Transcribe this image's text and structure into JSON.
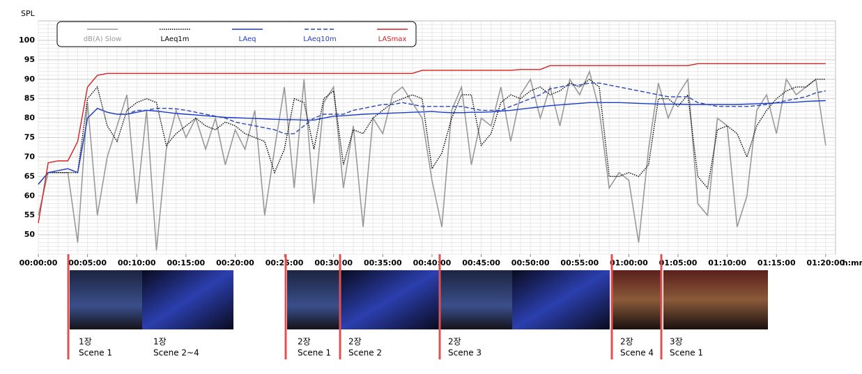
{
  "chart_data": {
    "type": "line",
    "ylabel": "SPL",
    "xlabel": "h:mm",
    "xlim": [
      0,
      81
    ],
    "ylim": [
      45,
      105
    ],
    "yticks": [
      50,
      55,
      60,
      65,
      70,
      75,
      80,
      85,
      90,
      95,
      100
    ],
    "xticks": [
      {
        "value": 0,
        "label": "00:00:00"
      },
      {
        "value": 5,
        "label": "00:05:00"
      },
      {
        "value": 10,
        "label": "00:10:00"
      },
      {
        "value": 15,
        "label": "00:15:00"
      },
      {
        "value": 20,
        "label": "00:20:00"
      },
      {
        "value": 25,
        "label": "00:25:00"
      },
      {
        "value": 30,
        "label": "00:30:00"
      },
      {
        "value": 35,
        "label": "00:35:00"
      },
      {
        "value": 40,
        "label": "00:40:00"
      },
      {
        "value": 45,
        "label": "00:45:00"
      },
      {
        "value": 50,
        "label": "00:50:00"
      },
      {
        "value": 55,
        "label": "00:55:00"
      },
      {
        "value": 60,
        "label": "01:00:00"
      },
      {
        "value": 65,
        "label": "01:05:00"
      },
      {
        "value": 70,
        "label": "01:10:00"
      },
      {
        "value": 75,
        "label": "01:15:00"
      },
      {
        "value": 80,
        "label": "01:20:00"
      }
    ],
    "grid": true,
    "x": [
      0,
      1,
      2,
      3,
      4,
      5,
      6,
      7,
      8,
      9,
      10,
      11,
      12,
      13,
      14,
      15,
      16,
      17,
      18,
      19,
      20,
      21,
      22,
      23,
      24,
      25,
      26,
      27,
      28,
      29,
      30,
      31,
      32,
      33,
      34,
      35,
      36,
      37,
      38,
      39,
      40,
      41,
      42,
      43,
      44,
      45,
      46,
      47,
      48,
      49,
      50,
      51,
      52,
      53,
      54,
      55,
      56,
      57,
      58,
      59,
      60,
      61,
      62,
      63,
      64,
      65,
      66,
      67,
      68,
      69,
      70,
      71,
      72,
      73,
      74,
      75,
      76,
      77,
      78,
      79,
      80
    ],
    "series": [
      {
        "name": "dB(A) Slow",
        "color": "#999999",
        "style": "solid",
        "values": [
          55,
          66,
          66,
          66,
          48,
          84,
          55,
          70,
          78,
          86,
          58,
          82,
          46,
          72,
          82,
          75,
          80,
          72,
          80,
          68,
          77,
          72,
          82,
          55,
          72,
          88,
          62,
          90,
          58,
          84,
          88,
          62,
          78,
          52,
          80,
          76,
          86,
          88,
          84,
          80,
          64,
          52,
          82,
          88,
          68,
          80,
          78,
          88,
          74,
          86,
          90,
          80,
          88,
          78,
          90,
          86,
          92,
          82,
          62,
          66,
          64,
          48,
          72,
          89,
          80,
          86,
          90,
          58,
          55,
          80,
          78,
          52,
          60,
          82,
          86,
          76,
          90,
          86,
          88,
          90,
          73
        ]
      },
      {
        "name": "LAeq1m",
        "color": "#000000",
        "style": "dotted",
        "values": [
          63,
          66,
          66,
          66,
          66,
          85,
          88,
          78,
          74,
          82,
          84,
          85,
          84,
          73,
          76,
          78,
          80,
          78,
          77,
          79,
          78,
          76,
          75,
          74,
          66,
          72,
          85,
          84,
          72,
          85,
          87,
          68,
          77,
          76,
          80,
          82,
          84,
          85,
          86,
          85,
          67,
          71,
          80,
          86,
          86,
          73,
          76,
          84,
          86,
          85,
          87,
          88,
          86,
          87,
          89,
          88,
          90,
          88,
          65,
          65,
          66,
          65,
          68,
          85,
          85,
          83,
          86,
          65,
          62,
          77,
          78,
          76,
          70,
          78,
          82,
          85,
          87,
          88,
          88,
          90,
          90
        ]
      },
      {
        "name": "LAeq",
        "color": "#1a3acc",
        "style": "solid",
        "values": [
          63,
          66,
          66.5,
          67,
          66,
          80,
          82.5,
          81.5,
          81,
          81,
          81.5,
          82,
          81.8,
          81.5,
          81.2,
          81,
          80.8,
          80.6,
          80.4,
          80.2,
          80.1,
          80,
          79.9,
          79.8,
          79.7,
          79.6,
          79.6,
          79.5,
          79.5,
          80,
          80.5,
          80.6,
          80.8,
          81,
          81.1,
          81.2,
          81.3,
          81.4,
          81.5,
          81.6,
          81.7,
          81.5,
          81.4,
          81.4,
          81.5,
          81.5,
          81.6,
          81.8,
          82,
          82.3,
          82.6,
          82.9,
          83.2,
          83.4,
          83.6,
          83.8,
          84,
          84,
          84,
          84,
          83.9,
          83.8,
          83.7,
          83.6,
          83.6,
          83.6,
          83.5,
          83.5,
          83.5,
          83.5,
          83.5,
          83.5,
          83.6,
          83.7,
          83.8,
          83.9,
          84,
          84.1,
          84.3,
          84.4,
          84.5
        ]
      },
      {
        "name": "LAeq10m",
        "color": "#2a44b8",
        "style": "dashed",
        "values": [
          63,
          66,
          66.5,
          67,
          66,
          80,
          82.5,
          81.5,
          81,
          81,
          82,
          82,
          82.5,
          82.5,
          82.4,
          82,
          81.5,
          81,
          80.5,
          80,
          79,
          78.5,
          78,
          77.5,
          77,
          76,
          76,
          78,
          80,
          81,
          81,
          81,
          82,
          82.5,
          83,
          83.5,
          83.5,
          84,
          83.5,
          83,
          83,
          83,
          83,
          83,
          82.5,
          82,
          82,
          82,
          83,
          84,
          85,
          86,
          87.5,
          88,
          88.5,
          88.5,
          89,
          89,
          88.5,
          88,
          87.5,
          87,
          86.5,
          86,
          85.5,
          85.5,
          85.5,
          84,
          83.5,
          83,
          83,
          83,
          83,
          83.2,
          83.5,
          84,
          84.5,
          85,
          85.5,
          86.5,
          87
        ]
      },
      {
        "name": "LASmax",
        "color": "#d42020",
        "style": "solid",
        "values": [
          53,
          68.5,
          69,
          69,
          74,
          88,
          91,
          91.5,
          91.5,
          91.5,
          91.5,
          91.5,
          91.5,
          91.5,
          91.5,
          91.5,
          91.5,
          91.5,
          91.5,
          91.5,
          91.5,
          91.5,
          91.5,
          91.5,
          91.5,
          91.5,
          91.5,
          91.5,
          91.5,
          91.5,
          91.5,
          91.5,
          91.5,
          91.5,
          91.5,
          91.5,
          91.5,
          91.5,
          91.5,
          92.3,
          92.3,
          92.3,
          92.3,
          92.3,
          92.3,
          92.3,
          92.3,
          92.3,
          92.3,
          92.5,
          92.5,
          92.5,
          93.5,
          93.5,
          93.5,
          93.5,
          93.5,
          93.5,
          93.5,
          93.5,
          93.5,
          93.5,
          93.5,
          93.5,
          93.5,
          93.5,
          93.5,
          94,
          94,
          94,
          94,
          94,
          94,
          94,
          94,
          94,
          94,
          94,
          94,
          94,
          94
        ]
      }
    ]
  },
  "scenes": [
    {
      "act": "1장",
      "scene": "Scene 1"
    },
    {
      "act": "1장",
      "scene": "Scene 2~4"
    },
    {
      "act": "2장",
      "scene": "Scene 1"
    },
    {
      "act": "2장",
      "scene": "Scene 2"
    },
    {
      "act": "2장",
      "scene": "Scene 3"
    },
    {
      "act": "2장",
      "scene": "Scene 4"
    },
    {
      "act": "3장",
      "scene": "Scene 1"
    }
  ]
}
